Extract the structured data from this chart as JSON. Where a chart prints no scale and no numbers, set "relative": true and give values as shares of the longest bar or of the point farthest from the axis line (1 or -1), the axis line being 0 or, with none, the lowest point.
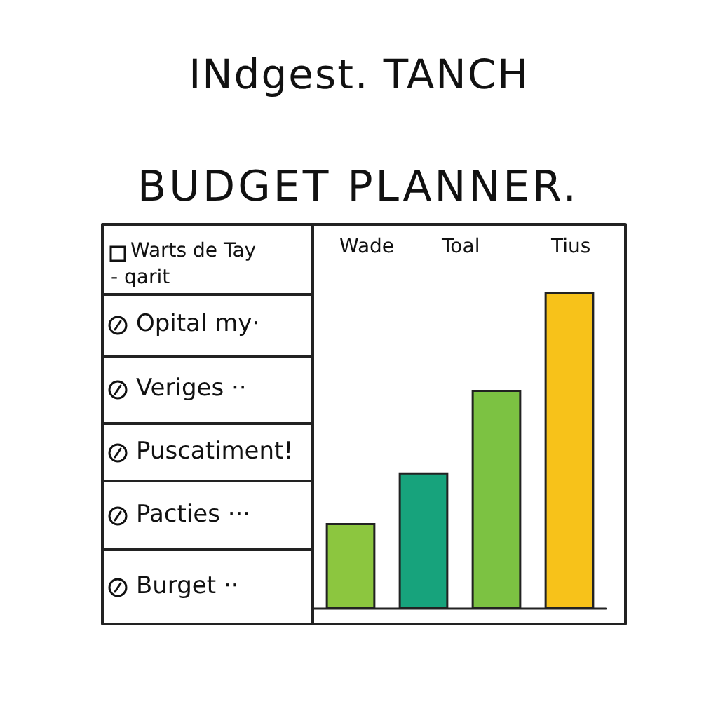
{
  "chart_data": {
    "type": "bar",
    "title": "INdgest. TANCH",
    "subtitle": "BUDGET PLANNER.",
    "annotations": [
      "Warts de Tay",
      "- qarit",
      "Wade",
      "Toal",
      "Tius",
      "Opital my·",
      "Veriges ··",
      "Puscatiment!",
      "Pacties ···",
      "Burget ··"
    ],
    "categories": [
      null,
      null,
      null,
      null
    ],
    "values": [
      0.27,
      0.43,
      0.69,
      1
    ],
    "colors": [
      "#8cc63f",
      "#17a37c",
      "#7cc242",
      "#f7c21a"
    ],
    "relative": true
  }
}
